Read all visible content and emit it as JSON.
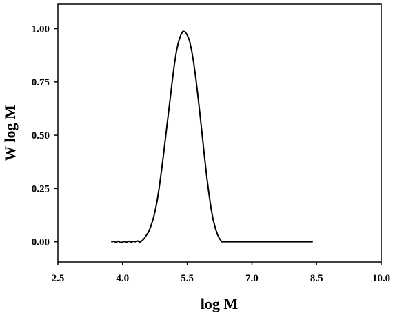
{
  "chart_data": {
    "type": "line",
    "title": "",
    "xlabel": "log M",
    "ylabel": "W log M",
    "xlim": [
      2.5,
      10.0
    ],
    "ylim": [
      -0.095,
      1.115
    ],
    "x_ticks": [
      2.5,
      4.0,
      5.5,
      7.0,
      8.5,
      10.0
    ],
    "x_tick_labels": [
      "2.5",
      "4.0",
      "5.5",
      "7.0",
      "8.5",
      "10.0"
    ],
    "y_ticks": [
      0.0,
      0.25,
      0.5,
      0.75,
      1.0
    ],
    "y_tick_labels": [
      "0.00",
      "0.25",
      "0.50",
      "0.75",
      "1.00"
    ],
    "grid": false,
    "legend": "none",
    "line_color": "#000000",
    "series": [
      {
        "x": [
          3.75,
          3.8,
          3.85,
          3.9,
          3.95,
          4.0,
          4.05,
          4.1,
          4.15,
          4.2,
          4.25,
          4.3,
          4.35,
          4.4,
          4.45,
          4.5,
          4.55,
          4.6,
          4.65,
          4.7,
          4.75,
          4.8,
          4.85,
          4.9,
          4.95,
          5.0,
          5.05,
          5.1,
          5.15,
          5.2,
          5.25,
          5.3,
          5.35,
          5.4,
          5.45,
          5.5,
          5.55,
          5.6,
          5.65,
          5.7,
          5.75,
          5.8,
          5.85,
          5.9,
          5.95,
          6.0,
          6.05,
          6.1,
          6.15,
          6.2,
          6.25,
          6.3,
          6.35,
          6.4,
          6.45,
          6.5,
          6.55,
          6.6,
          6.65,
          6.7,
          7.0,
          7.5,
          8.0,
          8.4
        ],
        "y": [
          0.0,
          0.002,
          -0.003,
          0.003,
          -0.004,
          -0.002,
          0.002,
          -0.003,
          0.003,
          -0.002,
          0.002,
          0.0,
          0.004,
          -0.002,
          0.005,
          0.015,
          0.03,
          0.045,
          0.07,
          0.1,
          0.14,
          0.19,
          0.255,
          0.33,
          0.41,
          0.495,
          0.58,
          0.665,
          0.75,
          0.83,
          0.895,
          0.94,
          0.97,
          0.988,
          0.985,
          0.97,
          0.945,
          0.9,
          0.84,
          0.765,
          0.68,
          0.59,
          0.495,
          0.4,
          0.31,
          0.23,
          0.16,
          0.105,
          0.065,
          0.035,
          0.015,
          0.0,
          0.0,
          0.0,
          0.0,
          0.0,
          0.0,
          0.0,
          0.0,
          0.0,
          0.0,
          0.0,
          0.0,
          0.0
        ]
      }
    ]
  }
}
